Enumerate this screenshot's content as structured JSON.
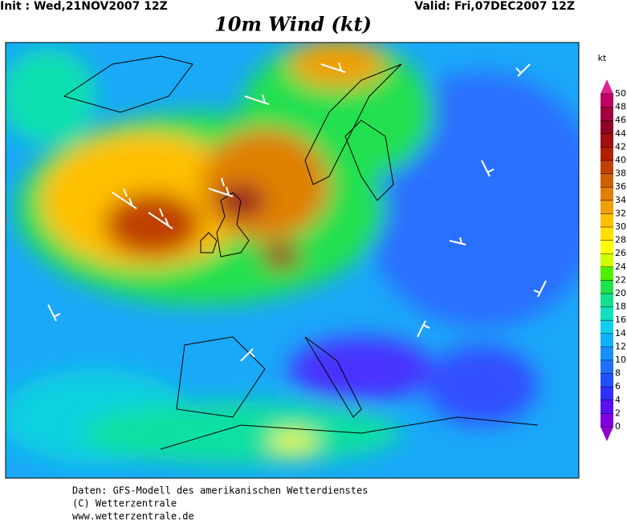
{
  "header": {
    "init": "Init : Wed,21NOV2007 12Z",
    "valid": "Valid: Fri,07DEC2007 12Z",
    "title": "10m Wind (kt)"
  },
  "legend": {
    "unit": "kt",
    "levels": [
      0,
      2,
      4,
      6,
      8,
      10,
      12,
      14,
      16,
      18,
      20,
      22,
      24,
      26,
      28,
      30,
      32,
      34,
      36,
      38,
      40,
      42,
      44,
      46,
      48,
      50
    ],
    "colors": [
      "#9000d0",
      "#8000e0",
      "#5a10f0",
      "#3030ff",
      "#2050ff",
      "#2070ff",
      "#1890ff",
      "#10b0ff",
      "#10d0f0",
      "#10e0c0",
      "#10e090",
      "#20e050",
      "#50f000",
      "#d0ff00",
      "#ffff00",
      "#ffe000",
      "#ffc000",
      "#f0a000",
      "#e08000",
      "#d06000",
      "#c04000",
      "#b02000",
      "#a01010",
      "#900020",
      "#a00040",
      "#c00060",
      "#e02090"
    ]
  },
  "footer": {
    "lines": [
      "Daten: GFS-Modell des amerikanischen Wetterdienstes",
      "(C) Wetterzentrale",
      "www.wetterzentrale.de"
    ]
  }
}
